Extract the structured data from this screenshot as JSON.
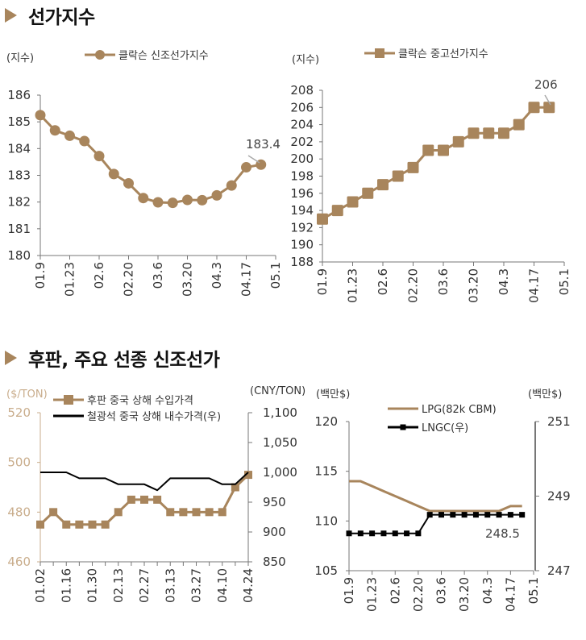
{
  "sections": [
    {
      "title": "선가지수"
    },
    {
      "title": "후판,  주요 선종 신조선가"
    }
  ],
  "colors": {
    "accent": "#a8855c",
    "black": "#000000",
    "axis": "#777777",
    "tan_text": "#c9ad8c"
  },
  "chart_data": [
    {
      "type": "line",
      "title": "",
      "unit_left": "(지수)",
      "legend": [
        {
          "name": "클락슨 신조선가지수",
          "marker": "circle",
          "color": "#a8855c"
        }
      ],
      "ylim": [
        180,
        186
      ],
      "yticks": [
        "180",
        "181",
        "182",
        "183",
        "184",
        "185",
        "186"
      ],
      "xtick_labels": [
        "01.9",
        "01.23",
        "02.6",
        "02.20",
        "03.6",
        "03.20",
        "04.3",
        "04.17",
        "05.1"
      ],
      "x_range_weeks": [
        0,
        16
      ],
      "series": [
        {
          "name": "클락슨 신조선가지수",
          "x": [
            0,
            1,
            2,
            3,
            4,
            5,
            6,
            7,
            8,
            9,
            10,
            11,
            12,
            13,
            14,
            15
          ],
          "values": [
            185.25,
            184.68,
            184.48,
            184.28,
            183.72,
            183.05,
            182.7,
            182.15,
            181.99,
            181.97,
            182.08,
            182.07,
            182.25,
            182.62,
            183.3,
            183.4
          ]
        }
      ],
      "annotation": "183.4"
    },
    {
      "type": "line",
      "title": "",
      "unit_left": "(지수)",
      "legend": [
        {
          "name": "클락슨 중고선가지수",
          "marker": "square",
          "color": "#a8855c"
        }
      ],
      "ylim": [
        188,
        208
      ],
      "yticks": [
        "188",
        "190",
        "192",
        "194",
        "196",
        "198",
        "200",
        "202",
        "204",
        "206",
        "208"
      ],
      "xtick_labels": [
        "01.9",
        "01.23",
        "02.6",
        "02.20",
        "03.6",
        "03.20",
        "04.3",
        "04.17",
        "05.1"
      ],
      "x_range_weeks": [
        0,
        16
      ],
      "series": [
        {
          "name": "클락슨 중고선가지수",
          "x": [
            0,
            1,
            2,
            3,
            4,
            5,
            6,
            7,
            8,
            9,
            10,
            11,
            12,
            13,
            14,
            15
          ],
          "values": [
            193,
            194,
            195,
            196,
            197,
            198,
            199,
            201,
            201,
            202,
            203,
            203,
            203,
            204,
            206,
            206
          ]
        }
      ],
      "annotation": "206"
    },
    {
      "type": "line",
      "title": "",
      "unit_left": "($/TON)",
      "unit_right": "(CNY/TON)",
      "legend": [
        {
          "name": "후판 중국 상해 수입가격",
          "marker": "square",
          "color": "#a8855c"
        },
        {
          "name": "철광석 중국 상해 내수가격(우)",
          "marker": "none",
          "color": "#000000"
        }
      ],
      "ylim_left": [
        460,
        520
      ],
      "yticks_left": [
        "460",
        "480",
        "500",
        "520"
      ],
      "ylim_right": [
        850,
        1100
      ],
      "yticks_right": [
        "850",
        "900",
        "950",
        "1,000",
        "1,050",
        "1,100"
      ],
      "xtick_labels": [
        "01.02",
        "01.16",
        "01.30",
        "02.13",
        "02.27",
        "03.13",
        "03.27",
        "04.10",
        "04.24"
      ],
      "x_range_weeks": [
        0,
        16
      ],
      "series": [
        {
          "name": "후판 중국 상해 수입가격",
          "axis": "left",
          "x": [
            0,
            1,
            2,
            3,
            4,
            5,
            6,
            7,
            8,
            9,
            10,
            11,
            12,
            13,
            14,
            15,
            16
          ],
          "values": [
            475,
            480,
            475,
            475,
            475,
            475,
            480,
            485,
            485,
            485,
            480,
            480,
            480,
            480,
            480,
            490,
            495
          ]
        },
        {
          "name": "철광석 중국 상해 내수가격(우)",
          "axis": "right",
          "x": [
            0,
            1,
            2,
            3,
            4,
            5,
            6,
            7,
            8,
            9,
            10,
            11,
            12,
            13,
            14,
            15,
            16
          ],
          "values": [
            1000,
            1000,
            1000,
            990,
            990,
            990,
            980,
            980,
            980,
            970,
            990,
            990,
            990,
            990,
            980,
            980,
            1000
          ]
        }
      ]
    },
    {
      "type": "line",
      "title": "",
      "unit_left": "(백만$)",
      "unit_right": "(백만$)",
      "legend": [
        {
          "name": "LPG(82k CBM)",
          "marker": "none",
          "color": "#a8855c"
        },
        {
          "name": "LNGC(우)",
          "marker": "square",
          "color": "#000000"
        }
      ],
      "ylim_left": [
        105,
        120
      ],
      "yticks_left": [
        "105",
        "110",
        "115",
        "120"
      ],
      "ylim_right": [
        247,
        251
      ],
      "yticks_right": [
        "247",
        "249",
        "251"
      ],
      "xtick_labels": [
        "01.9",
        "01.23",
        "02.6",
        "02.20",
        "03.6",
        "03.20",
        "04.3",
        "04.17",
        "05.1"
      ],
      "x_range_weeks": [
        0,
        16
      ],
      "series": [
        {
          "name": "LPG(82k CBM)",
          "axis": "left",
          "x": [
            0,
            1,
            2,
            3,
            4,
            5,
            6,
            7,
            8,
            9,
            10,
            11,
            12,
            13,
            14,
            15
          ],
          "values": [
            114,
            114,
            113.5,
            113,
            112.5,
            112,
            111.5,
            111,
            111,
            111,
            111,
            111,
            111,
            111,
            111.5,
            111.5
          ]
        },
        {
          "name": "LNGC(우)",
          "axis": "right",
          "x": [
            0,
            1,
            2,
            3,
            4,
            5,
            6,
            7,
            8,
            9,
            10,
            11,
            12,
            13,
            14,
            15
          ],
          "values": [
            248,
            248,
            248,
            248,
            248,
            248,
            248,
            248.5,
            248.5,
            248.5,
            248.5,
            248.5,
            248.5,
            248.5,
            248.5,
            248.5
          ]
        }
      ],
      "annotation": "248.5"
    }
  ]
}
